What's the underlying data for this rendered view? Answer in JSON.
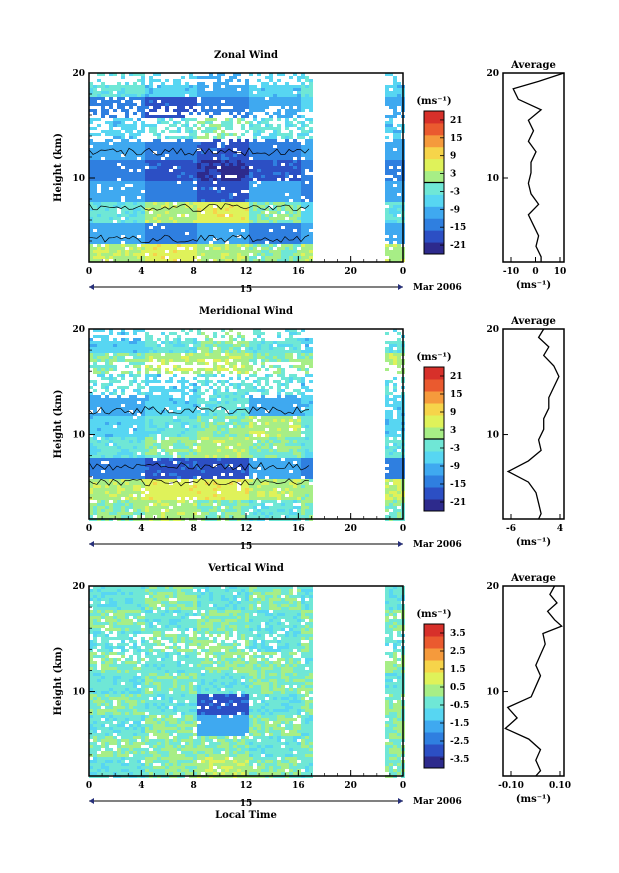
{
  "colorbar": [
    "#2d2a8c",
    "#2c4fc4",
    "#2f7fe0",
    "#3fa9f0",
    "#57d6f2",
    "#6fe7d6",
    "#a7ee86",
    "#dff25a",
    "#f6d44a",
    "#f59a3c",
    "#ea5a2f",
    "#d7302a"
  ],
  "panels": [
    {
      "title": "Zonal Wind",
      "unit": "(ms⁻¹)",
      "cb_ticks": [
        "21",
        "15",
        "9",
        "3",
        "-3",
        "-9",
        "-15",
        "-21"
      ],
      "zero_line_frac": 0.5,
      "ylabel": "Height (km)",
      "yticks": [
        "20",
        "10"
      ],
      "xticks": [
        "0",
        "4",
        "8",
        "12",
        "16",
        "20",
        "0"
      ],
      "day_label": "15",
      "date_label": "Mar 2006",
      "avg": {
        "title": "Average",
        "xticks": [
          "-10",
          "0",
          "10"
        ],
        "unit": "(ms⁻¹)",
        "yticks": [
          "20",
          "10"
        ]
      }
    },
    {
      "title": "Meridional Wind",
      "unit": "(ms⁻¹)",
      "cb_ticks": [
        "21",
        "15",
        "9",
        "3",
        "-3",
        "-9",
        "-15",
        "-21"
      ],
      "zero_line_frac": 0.5,
      "ylabel": "Height (km)",
      "yticks": [
        "20",
        "10"
      ],
      "xticks": [
        "0",
        "4",
        "8",
        "12",
        "16",
        "20",
        "0"
      ],
      "day_label": "15",
      "date_label": "Mar 2006",
      "avg": {
        "title": "Average",
        "xticks": [
          "-6",
          "4"
        ],
        "unit": "(ms⁻¹)",
        "yticks": [
          "20",
          "10"
        ]
      }
    },
    {
      "title": "Vertical Wind",
      "unit": "(ms⁻¹)",
      "cb_ticks": [
        "3.5",
        "2.5",
        "1.5",
        "0.5",
        "-0.5",
        "-1.5",
        "-2.5",
        "-3.5"
      ],
      "zero_line_frac": null,
      "ylabel": "Height (km)",
      "yticks": [
        "20",
        "10"
      ],
      "xticks": [
        "0",
        "4",
        "8",
        "12",
        "16",
        "20",
        "0"
      ],
      "day_label": "15",
      "date_label": "Mar 2006",
      "xlabel": "Local Time",
      "avg": {
        "title": "Average",
        "xticks": [
          "-0.10",
          "0.10"
        ],
        "unit": "(ms⁻¹)",
        "yticks": [
          "20",
          "10"
        ]
      }
    }
  ],
  "chart_data": [
    {
      "type": "heatmap",
      "title": "Zonal Wind",
      "xlabel": "",
      "ylabel": "Height (km)",
      "xlim": [
        0,
        24
      ],
      "ylim": [
        2,
        20
      ],
      "colorbar_range": [
        -21,
        21
      ],
      "data_gap_hours": [
        17,
        22.5
      ],
      "rows": [
        {
          "height": 19,
          "values": [
            -3,
            -6,
            -9,
            -6,
            -3,
            -6
          ]
        },
        {
          "height": 17,
          "values": [
            -12,
            -15,
            -12,
            -9,
            -6,
            -9
          ]
        },
        {
          "height": 15,
          "values": [
            -6,
            -3,
            0,
            -3,
            -3,
            -6
          ]
        },
        {
          "height": 13,
          "values": [
            -9,
            -12,
            -15,
            -12,
            -9,
            -9
          ]
        },
        {
          "height": 11,
          "values": [
            -12,
            -15,
            -18,
            -15,
            -12,
            -12
          ]
        },
        {
          "height": 9,
          "values": [
            -9,
            -12,
            -15,
            -9,
            -12,
            -9
          ]
        },
        {
          "height": 7,
          "values": [
            -3,
            3,
            6,
            0,
            -6,
            -3
          ]
        },
        {
          "height": 5,
          "values": [
            -9,
            -12,
            -9,
            -12,
            -9,
            -9
          ]
        },
        {
          "height": 3,
          "values": [
            3,
            6,
            3,
            0,
            3,
            3
          ]
        }
      ],
      "average_profile": {
        "xlim": [
          -12,
          12
        ],
        "points": [
          [
            12,
            20
          ],
          [
            2,
            19.2
          ],
          [
            -8,
            18.5
          ],
          [
            -6,
            17.5
          ],
          [
            3,
            16.5
          ],
          [
            -2,
            15.5
          ],
          [
            0,
            14.5
          ],
          [
            -2,
            13.5
          ],
          [
            1,
            12.5
          ],
          [
            -1,
            11.5
          ],
          [
            -1,
            10.5
          ],
          [
            -2,
            9.5
          ],
          [
            -1,
            8.5
          ],
          [
            2,
            7.5
          ],
          [
            -2,
            6.5
          ],
          [
            0,
            5.5
          ],
          [
            2,
            4.5
          ],
          [
            1,
            3.5
          ],
          [
            3,
            2.5
          ],
          [
            3,
            2
          ]
        ]
      }
    },
    {
      "type": "heatmap",
      "title": "Meridional Wind",
      "xlabel": "",
      "ylabel": "Height (km)",
      "xlim": [
        0,
        24
      ],
      "ylim": [
        2,
        20
      ],
      "colorbar_range": [
        -21,
        21
      ],
      "data_gap_hours": [
        17,
        22.5
      ],
      "rows": [
        {
          "height": 19,
          "values": [
            -6,
            -3,
            0,
            -3,
            -6,
            -3
          ]
        },
        {
          "height": 17,
          "values": [
            0,
            3,
            3,
            0,
            0,
            3
          ]
        },
        {
          "height": 15,
          "values": [
            -3,
            -6,
            -3,
            -3,
            -6,
            -3
          ]
        },
        {
          "height": 13,
          "values": [
            -9,
            -6,
            -3,
            -9,
            -6,
            -6
          ]
        },
        {
          "height": 11,
          "values": [
            -6,
            -3,
            0,
            3,
            -3,
            -6
          ]
        },
        {
          "height": 9,
          "values": [
            -3,
            0,
            3,
            0,
            -3,
            -3
          ]
        },
        {
          "height": 7,
          "values": [
            -12,
            -15,
            -15,
            -9,
            -12,
            -12
          ]
        },
        {
          "height": 5,
          "values": [
            3,
            6,
            6,
            3,
            0,
            3
          ]
        },
        {
          "height": 3,
          "values": [
            0,
            3,
            0,
            -3,
            0,
            0
          ]
        }
      ],
      "average_profile": {
        "xlim": [
          -7,
          5
        ],
        "points": [
          [
            1,
            20
          ],
          [
            0,
            19.2
          ],
          [
            2,
            18.3
          ],
          [
            1,
            17.5
          ],
          [
            3,
            16.5
          ],
          [
            4,
            15.5
          ],
          [
            3,
            14.5
          ],
          [
            2,
            13.5
          ],
          [
            2,
            12.5
          ],
          [
            1,
            11.5
          ],
          [
            1,
            10.5
          ],
          [
            0,
            9.5
          ],
          [
            0.5,
            8.5
          ],
          [
            -2,
            7.5
          ],
          [
            -6,
            6.5
          ],
          [
            -2,
            5.5
          ],
          [
            -0.5,
            4.5
          ],
          [
            0,
            3.5
          ],
          [
            0.5,
            2.5
          ],
          [
            0,
            2
          ]
        ]
      }
    },
    {
      "type": "heatmap",
      "title": "Vertical Wind",
      "xlabel": "Local Time",
      "ylabel": "Height (km)",
      "xlim": [
        0,
        24
      ],
      "ylim": [
        2,
        20
      ],
      "colorbar_range": [
        -3.5,
        3.5
      ],
      "data_gap_hours": [
        17,
        22.5
      ],
      "rows": [
        {
          "height": 19,
          "values": [
            -0.5,
            0,
            -0.5,
            0,
            -0.5,
            -0.5
          ]
        },
        {
          "height": 17,
          "values": [
            0,
            -0.5,
            0,
            -0.5,
            0,
            0
          ]
        },
        {
          "height": 15,
          "values": [
            -0.5,
            0,
            0,
            -0.5,
            0,
            -0.5
          ]
        },
        {
          "height": 13,
          "values": [
            0,
            -0.5,
            0,
            0,
            -0.5,
            0
          ]
        },
        {
          "height": 11,
          "values": [
            -0.5,
            0,
            -0.5,
            0,
            0,
            -0.5
          ]
        },
        {
          "height": 9,
          "values": [
            0,
            -0.5,
            -2.5,
            -0.5,
            0,
            0
          ]
        },
        {
          "height": 7,
          "values": [
            -0.5,
            0,
            -1.5,
            0,
            -0.5,
            0
          ]
        },
        {
          "height": 5,
          "values": [
            0,
            0,
            0,
            -0.5,
            0,
            0
          ]
        },
        {
          "height": 3,
          "values": [
            -0.5,
            0,
            0.5,
            0,
            -0.5,
            0
          ]
        }
      ],
      "average_profile": {
        "xlim": [
          -0.14,
          0.12
        ],
        "points": [
          [
            0.08,
            20
          ],
          [
            0.06,
            19.2
          ],
          [
            0.09,
            18.4
          ],
          [
            0.05,
            17.6
          ],
          [
            0.08,
            16.8
          ],
          [
            0.11,
            16.2
          ],
          [
            0.03,
            15.5
          ],
          [
            0.04,
            14.5
          ],
          [
            0.02,
            13.5
          ],
          [
            0.0,
            12.5
          ],
          [
            0.02,
            11.5
          ],
          [
            0.0,
            10.5
          ],
          [
            -0.02,
            9.5
          ],
          [
            -0.12,
            8.5
          ],
          [
            -0.08,
            7.5
          ],
          [
            -0.13,
            6.5
          ],
          [
            -0.03,
            5.5
          ],
          [
            0.02,
            4.5
          ],
          [
            0.0,
            3.5
          ],
          [
            0.02,
            2.5
          ],
          [
            0.0,
            2
          ]
        ]
      }
    }
  ]
}
